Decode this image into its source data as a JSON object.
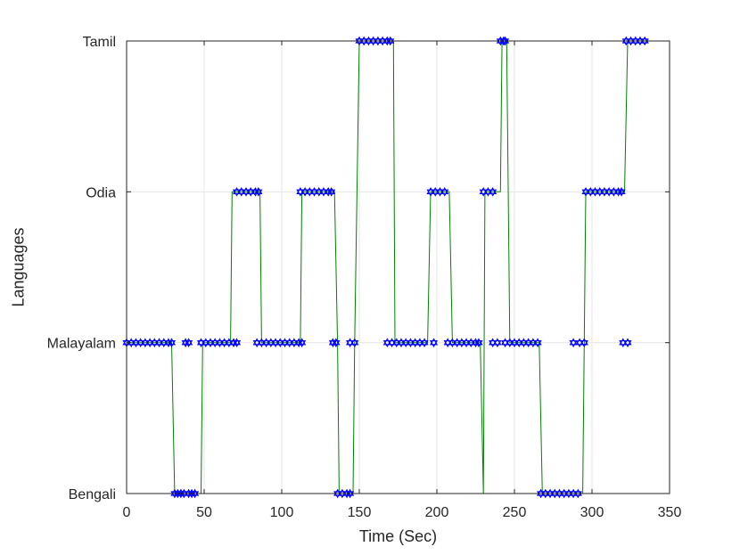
{
  "chart_data": {
    "type": "line",
    "title": "",
    "xlabel": "Time (Sec)",
    "ylabel": "Languages",
    "xlim": [
      0,
      350
    ],
    "xticks": [
      0,
      50,
      100,
      150,
      200,
      250,
      300,
      350
    ],
    "categories_y": [
      "Bengali",
      "Malayalam",
      "Odia",
      "Tamil"
    ],
    "grid": true,
    "legend": "none",
    "colors": {
      "line": "#008000",
      "marker": "#0000ff",
      "axis": "#262626",
      "grid": "#e6e6e6"
    },
    "marker": "hexagram",
    "series": [
      {
        "points": [
          [
            0,
            "Malayalam"
          ],
          [
            3,
            "Malayalam"
          ],
          [
            6,
            "Malayalam"
          ],
          [
            9,
            "Malayalam"
          ],
          [
            12,
            "Malayalam"
          ],
          [
            15,
            "Malayalam"
          ],
          [
            18,
            "Malayalam"
          ],
          [
            21,
            "Malayalam"
          ],
          [
            24,
            "Malayalam"
          ],
          [
            27,
            "Malayalam"
          ],
          [
            29,
            "Malayalam"
          ],
          [
            31,
            "Bengali"
          ],
          [
            33,
            "Bengali"
          ],
          [
            35,
            "Bengali"
          ],
          [
            37,
            "Bengali"
          ],
          [
            40,
            "Bengali"
          ],
          [
            42,
            "Bengali"
          ],
          [
            44,
            "Bengali"
          ],
          [
            38,
            "Malayalam"
          ],
          [
            40,
            "Malayalam"
          ],
          [
            48,
            "Malayalam"
          ],
          [
            51,
            "Malayalam"
          ],
          [
            54,
            "Malayalam"
          ],
          [
            57,
            "Malayalam"
          ],
          [
            60,
            "Malayalam"
          ],
          [
            63,
            "Malayalam"
          ],
          [
            66,
            "Malayalam"
          ],
          [
            69,
            "Malayalam"
          ],
          [
            71,
            "Malayalam"
          ],
          [
            71,
            "Odia"
          ],
          [
            74,
            "Odia"
          ],
          [
            77,
            "Odia"
          ],
          [
            80,
            "Odia"
          ],
          [
            83,
            "Odia"
          ],
          [
            85,
            "Odia"
          ],
          [
            84,
            "Malayalam"
          ],
          [
            87,
            "Malayalam"
          ],
          [
            90,
            "Malayalam"
          ],
          [
            93,
            "Malayalam"
          ],
          [
            96,
            "Malayalam"
          ],
          [
            99,
            "Malayalam"
          ],
          [
            102,
            "Malayalam"
          ],
          [
            105,
            "Malayalam"
          ],
          [
            108,
            "Malayalam"
          ],
          [
            111,
            "Malayalam"
          ],
          [
            113,
            "Malayalam"
          ],
          [
            112,
            "Odia"
          ],
          [
            115,
            "Odia"
          ],
          [
            118,
            "Odia"
          ],
          [
            121,
            "Odia"
          ],
          [
            124,
            "Odia"
          ],
          [
            127,
            "Odia"
          ],
          [
            130,
            "Odia"
          ],
          [
            132,
            "Odia"
          ],
          [
            133,
            "Malayalam"
          ],
          [
            135,
            "Malayalam"
          ],
          [
            136,
            "Bengali"
          ],
          [
            139,
            "Bengali"
          ],
          [
            142,
            "Bengali"
          ],
          [
            144,
            "Bengali"
          ],
          [
            144,
            "Malayalam"
          ],
          [
            147,
            "Malayalam"
          ],
          [
            150,
            "Tamil"
          ],
          [
            153,
            "Tamil"
          ],
          [
            156,
            "Tamil"
          ],
          [
            159,
            "Tamil"
          ],
          [
            162,
            "Tamil"
          ],
          [
            165,
            "Tamil"
          ],
          [
            168,
            "Tamil"
          ],
          [
            170,
            "Tamil"
          ],
          [
            168,
            "Malayalam"
          ],
          [
            171,
            "Malayalam"
          ],
          [
            174,
            "Malayalam"
          ],
          [
            177,
            "Malayalam"
          ],
          [
            180,
            "Malayalam"
          ],
          [
            183,
            "Malayalam"
          ],
          [
            186,
            "Malayalam"
          ],
          [
            189,
            "Malayalam"
          ],
          [
            192,
            "Malayalam"
          ],
          [
            198,
            "Malayalam"
          ],
          [
            196,
            "Odia"
          ],
          [
            199,
            "Odia"
          ],
          [
            202,
            "Odia"
          ],
          [
            205,
            "Odia"
          ],
          [
            207,
            "Malayalam"
          ],
          [
            210,
            "Malayalam"
          ],
          [
            213,
            "Malayalam"
          ],
          [
            216,
            "Malayalam"
          ],
          [
            219,
            "Malayalam"
          ],
          [
            222,
            "Malayalam"
          ],
          [
            225,
            "Malayalam"
          ],
          [
            227,
            "Malayalam"
          ],
          [
            230,
            "Odia"
          ],
          [
            233,
            "Odia"
          ],
          [
            236,
            "Odia"
          ],
          [
            236,
            "Malayalam"
          ],
          [
            239,
            "Malayalam"
          ],
          [
            241,
            "Tamil"
          ],
          [
            243,
            "Tamil"
          ],
          [
            244,
            "Tamil"
          ],
          [
            244,
            "Malayalam"
          ],
          [
            247,
            "Malayalam"
          ],
          [
            250,
            "Malayalam"
          ],
          [
            253,
            "Malayalam"
          ],
          [
            256,
            "Malayalam"
          ],
          [
            259,
            "Malayalam"
          ],
          [
            262,
            "Malayalam"
          ],
          [
            265,
            "Malayalam"
          ],
          [
            267,
            "Bengali"
          ],
          [
            270,
            "Bengali"
          ],
          [
            273,
            "Bengali"
          ],
          [
            276,
            "Bengali"
          ],
          [
            279,
            "Bengali"
          ],
          [
            282,
            "Bengali"
          ],
          [
            285,
            "Bengali"
          ],
          [
            288,
            "Bengali"
          ],
          [
            291,
            "Bengali"
          ],
          [
            288,
            "Malayalam"
          ],
          [
            292,
            "Malayalam"
          ],
          [
            295,
            "Malayalam"
          ],
          [
            296,
            "Odia"
          ],
          [
            299,
            "Odia"
          ],
          [
            302,
            "Odia"
          ],
          [
            305,
            "Odia"
          ],
          [
            308,
            "Odia"
          ],
          [
            311,
            "Odia"
          ],
          [
            314,
            "Odia"
          ],
          [
            317,
            "Odia"
          ],
          [
            319,
            "Odia"
          ],
          [
            320,
            "Malayalam"
          ],
          [
            323,
            "Malayalam"
          ],
          [
            322,
            "Tamil"
          ],
          [
            325,
            "Tamil"
          ],
          [
            328,
            "Tamil"
          ],
          [
            331,
            "Tamil"
          ],
          [
            334,
            "Tamil"
          ]
        ],
        "line_path": [
          [
            0,
            "Malayalam"
          ],
          [
            29,
            "Malayalam"
          ],
          [
            31,
            "Bengali"
          ],
          [
            48,
            "Bengali"
          ],
          [
            49,
            "Malayalam"
          ],
          [
            67,
            "Malayalam"
          ],
          [
            68,
            "Odia"
          ],
          [
            86,
            "Odia"
          ],
          [
            87,
            "Malayalam"
          ],
          [
            112,
            "Malayalam"
          ],
          [
            113,
            "Odia"
          ],
          [
            134,
            "Odia"
          ],
          [
            136,
            "Malayalam"
          ],
          [
            137,
            "Bengali"
          ],
          [
            146,
            "Bengali"
          ],
          [
            147,
            "Malayalam"
          ],
          [
            150,
            "Tamil"
          ],
          [
            172,
            "Tamil"
          ],
          [
            173,
            "Malayalam"
          ],
          [
            194,
            "Malayalam"
          ],
          [
            196,
            "Odia"
          ],
          [
            208,
            "Odia"
          ],
          [
            210,
            "Malayalam"
          ],
          [
            228,
            "Malayalam"
          ],
          [
            230,
            "Bengali"
          ],
          [
            231,
            "Odia"
          ],
          [
            241,
            "Odia"
          ],
          [
            242,
            "Tamil"
          ],
          [
            245,
            "Tamil"
          ],
          [
            247,
            "Malayalam"
          ],
          [
            266,
            "Malayalam"
          ],
          [
            268,
            "Bengali"
          ],
          [
            294,
            "Bengali"
          ],
          [
            296,
            "Odia"
          ],
          [
            321,
            "Odia"
          ],
          [
            323,
            "Tamil"
          ],
          [
            334,
            "Tamil"
          ]
        ]
      }
    ]
  }
}
